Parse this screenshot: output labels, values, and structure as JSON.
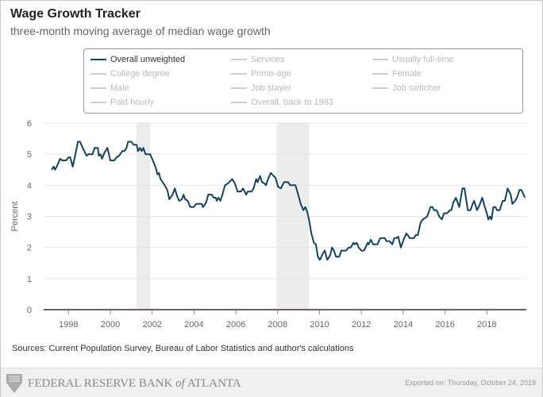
{
  "header": {
    "title": "Wage Growth Tracker",
    "subtitle": "three-month moving average of median wage growth"
  },
  "legend": {
    "items": [
      {
        "label": "Overall unweighted",
        "active": true
      },
      {
        "label": "Services",
        "active": false
      },
      {
        "label": "Usually full-time",
        "active": false
      },
      {
        "label": "College degree",
        "active": false
      },
      {
        "label": "Prime-age",
        "active": false
      },
      {
        "label": "Female",
        "active": false
      },
      {
        "label": "Male",
        "active": false
      },
      {
        "label": "Job stayer",
        "active": false
      },
      {
        "label": "Job switcher",
        "active": false
      },
      {
        "label": "Paid hourly",
        "active": false
      },
      {
        "label": "Overall, back to 1983",
        "active": false
      }
    ]
  },
  "footer": {
    "source": "Sources: Current Population Survey, Bureau of Labor Statistics and author's calculations",
    "logo_text": "FEDERAL RESERVE BANK of ATLANTA",
    "exported": "Exported on: Thursday, October 24, 2019"
  },
  "colors": {
    "series": "#16425b",
    "recession": "#ececec",
    "axis": "#6b6458",
    "grid": "#e6e6e6"
  },
  "chart_data": {
    "type": "line",
    "title": "Wage Growth Tracker",
    "subtitle": "three-month moving average of median wage growth",
    "xlabel": "",
    "ylabel": "Percent",
    "xlim": [
      1997,
      2019.9
    ],
    "ylim": [
      0,
      6
    ],
    "xticks": [
      1998,
      2000,
      2002,
      2004,
      2006,
      2008,
      2010,
      2012,
      2014,
      2016,
      2018
    ],
    "yticks": [
      0,
      1,
      2,
      3,
      4,
      5,
      6
    ],
    "grid": "horizontal",
    "legend_placement": "top",
    "recessions": [
      [
        2001.25,
        2001.9
      ],
      [
        2007.95,
        2009.5
      ]
    ],
    "series": [
      {
        "name": "Overall unweighted",
        "points": [
          [
            1997.19,
            4.5
          ],
          [
            1997.29,
            4.6
          ],
          [
            1997.35,
            4.5
          ],
          [
            1997.44,
            4.6
          ],
          [
            1997.6,
            4.85
          ],
          [
            1997.7,
            4.8
          ],
          [
            1997.89,
            4.8
          ],
          [
            1998.0,
            4.9
          ],
          [
            1998.08,
            4.9
          ],
          [
            1998.2,
            4.6
          ],
          [
            1998.3,
            4.9
          ],
          [
            1998.45,
            5.4
          ],
          [
            1998.55,
            5.4
          ],
          [
            1998.75,
            5.1
          ],
          [
            1998.87,
            4.95
          ],
          [
            1998.95,
            5.0
          ],
          [
            1999.15,
            5.0
          ],
          [
            1999.25,
            5.2
          ],
          [
            1999.4,
            5.2
          ],
          [
            1999.45,
            4.95
          ],
          [
            1999.53,
            5.0
          ],
          [
            1999.6,
            4.85
          ],
          [
            1999.72,
            5.05
          ],
          [
            1999.86,
            5.2
          ],
          [
            2000.0,
            4.8
          ],
          [
            2000.19,
            4.8
          ],
          [
            2000.3,
            4.9
          ],
          [
            2000.42,
            4.95
          ],
          [
            2000.57,
            5.1
          ],
          [
            2000.67,
            5.1
          ],
          [
            2000.77,
            5.2
          ],
          [
            2000.85,
            5.4
          ],
          [
            2001.0,
            5.4
          ],
          [
            2001.12,
            5.3
          ],
          [
            2001.26,
            5.3
          ],
          [
            2001.32,
            5.1
          ],
          [
            2001.42,
            5.2
          ],
          [
            2001.5,
            5.1
          ],
          [
            2001.58,
            5.2
          ],
          [
            2001.68,
            5.0
          ],
          [
            2001.9,
            5.0
          ],
          [
            2002.03,
            4.8
          ],
          [
            2002.18,
            4.55
          ],
          [
            2002.25,
            4.35
          ],
          [
            2002.32,
            4.4
          ],
          [
            2002.4,
            4.2
          ],
          [
            2002.6,
            4.0
          ],
          [
            2002.72,
            3.85
          ],
          [
            2002.82,
            3.55
          ],
          [
            2002.97,
            3.7
          ],
          [
            2003.08,
            3.9
          ],
          [
            2003.19,
            3.65
          ],
          [
            2003.29,
            3.5
          ],
          [
            2003.42,
            3.55
          ],
          [
            2003.5,
            3.7
          ],
          [
            2003.58,
            3.55
          ],
          [
            2003.7,
            3.5
          ],
          [
            2003.82,
            3.3
          ],
          [
            2003.98,
            3.3
          ],
          [
            2004.11,
            3.4
          ],
          [
            2004.37,
            3.4
          ],
          [
            2004.43,
            3.3
          ],
          [
            2004.58,
            3.45
          ],
          [
            2004.68,
            3.7
          ],
          [
            2004.85,
            3.7
          ],
          [
            2004.94,
            3.6
          ],
          [
            2005.04,
            3.6
          ],
          [
            2005.09,
            3.5
          ],
          [
            2005.17,
            3.6
          ],
          [
            2005.26,
            3.5
          ],
          [
            2005.36,
            3.7
          ],
          [
            2005.48,
            4.0
          ],
          [
            2005.6,
            4.05
          ],
          [
            2005.68,
            4.1
          ],
          [
            2005.83,
            4.2
          ],
          [
            2005.96,
            4.05
          ],
          [
            2006.08,
            3.8
          ],
          [
            2006.24,
            3.8
          ],
          [
            2006.34,
            3.9
          ],
          [
            2006.49,
            3.7
          ],
          [
            2006.57,
            3.8
          ],
          [
            2006.75,
            3.8
          ],
          [
            2006.85,
            3.9
          ],
          [
            2006.97,
            4.2
          ],
          [
            2007.04,
            4.1
          ],
          [
            2007.16,
            4.3
          ],
          [
            2007.25,
            4.1
          ],
          [
            2007.38,
            4.05
          ],
          [
            2007.44,
            4.0
          ],
          [
            2007.54,
            4.2
          ],
          [
            2007.67,
            4.4
          ],
          [
            2007.8,
            4.3
          ],
          [
            2007.89,
            4.25
          ],
          [
            2008.02,
            3.95
          ],
          [
            2008.15,
            3.9
          ],
          [
            2008.3,
            4.1
          ],
          [
            2008.5,
            4.1
          ],
          [
            2008.6,
            4.0
          ],
          [
            2008.85,
            4.0
          ],
          [
            2009.0,
            3.65
          ],
          [
            2009.1,
            3.4
          ],
          [
            2009.23,
            3.2
          ],
          [
            2009.32,
            3.3
          ],
          [
            2009.41,
            3.15
          ],
          [
            2009.51,
            2.85
          ],
          [
            2009.61,
            2.45
          ],
          [
            2009.73,
            2.15
          ],
          [
            2009.83,
            2.1
          ],
          [
            2009.92,
            1.7
          ],
          [
            2010.02,
            1.6
          ],
          [
            2010.15,
            1.8
          ],
          [
            2010.25,
            1.9
          ],
          [
            2010.37,
            1.6
          ],
          [
            2010.51,
            1.75
          ],
          [
            2010.6,
            2.0
          ],
          [
            2010.69,
            1.9
          ],
          [
            2010.79,
            1.7
          ],
          [
            2010.94,
            1.7
          ],
          [
            2011.04,
            1.9
          ],
          [
            2011.27,
            1.9
          ],
          [
            2011.4,
            2.0
          ],
          [
            2011.49,
            2.0
          ],
          [
            2011.62,
            2.15
          ],
          [
            2011.68,
            2.1
          ],
          [
            2011.78,
            2.15
          ],
          [
            2011.87,
            2.0
          ],
          [
            2012.0,
            1.9
          ],
          [
            2012.13,
            1.9
          ],
          [
            2012.3,
            2.15
          ],
          [
            2012.35,
            2.1
          ],
          [
            2012.45,
            2.25
          ],
          [
            2012.56,
            2.1
          ],
          [
            2012.77,
            2.1
          ],
          [
            2012.9,
            2.3
          ],
          [
            2013.12,
            2.3
          ],
          [
            2013.2,
            2.2
          ],
          [
            2013.35,
            2.2
          ],
          [
            2013.48,
            2.1
          ],
          [
            2013.57,
            2.3
          ],
          [
            2013.67,
            2.3
          ],
          [
            2013.76,
            2.35
          ],
          [
            2013.89,
            2.0
          ],
          [
            2014.02,
            2.25
          ],
          [
            2014.15,
            2.45
          ],
          [
            2014.32,
            2.3
          ],
          [
            2014.51,
            2.3
          ],
          [
            2014.61,
            2.4
          ],
          [
            2014.7,
            2.4
          ],
          [
            2014.83,
            2.8
          ],
          [
            2014.93,
            2.9
          ],
          [
            2015.05,
            2.95
          ],
          [
            2015.15,
            3.0
          ],
          [
            2015.3,
            3.3
          ],
          [
            2015.4,
            3.3
          ],
          [
            2015.47,
            3.2
          ],
          [
            2015.6,
            3.2
          ],
          [
            2015.72,
            3.0
          ],
          [
            2015.85,
            2.9
          ],
          [
            2015.95,
            3.1
          ],
          [
            2016.1,
            3.1
          ],
          [
            2016.23,
            3.2
          ],
          [
            2016.3,
            3.2
          ],
          [
            2016.4,
            3.45
          ],
          [
            2016.52,
            3.6
          ],
          [
            2016.68,
            3.3
          ],
          [
            2016.83,
            3.9
          ],
          [
            2016.93,
            3.9
          ],
          [
            2017.09,
            3.2
          ],
          [
            2017.22,
            3.2
          ],
          [
            2017.32,
            3.4
          ],
          [
            2017.39,
            3.5
          ],
          [
            2017.53,
            3.2
          ],
          [
            2017.64,
            3.35
          ],
          [
            2017.78,
            3.6
          ],
          [
            2017.9,
            3.3
          ],
          [
            2018.0,
            3.1
          ],
          [
            2018.07,
            2.9
          ],
          [
            2018.15,
            3.0
          ],
          [
            2018.22,
            2.9
          ],
          [
            2018.31,
            3.3
          ],
          [
            2018.41,
            3.3
          ],
          [
            2018.48,
            3.2
          ],
          [
            2018.61,
            3.2
          ],
          [
            2018.76,
            3.5
          ],
          [
            2018.86,
            3.5
          ],
          [
            2018.99,
            3.9
          ],
          [
            2019.14,
            3.7
          ],
          [
            2019.22,
            3.4
          ],
          [
            2019.35,
            3.5
          ],
          [
            2019.44,
            3.6
          ],
          [
            2019.56,
            3.85
          ],
          [
            2019.65,
            3.85
          ],
          [
            2019.82,
            3.6
          ]
        ]
      }
    ]
  }
}
